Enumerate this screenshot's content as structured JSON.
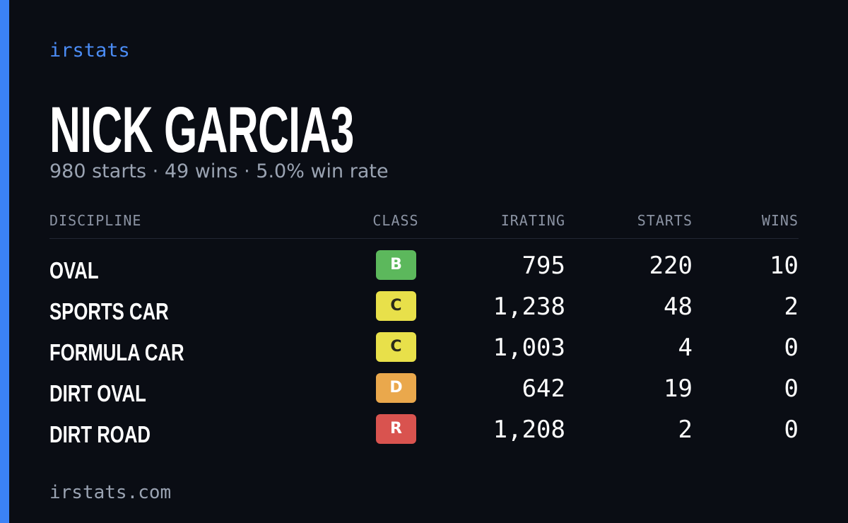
{
  "brand": "irstats",
  "title": "NICK GARCIA3",
  "subtitle": "980 starts · 49 wins · 5.0% win rate",
  "table": {
    "headers": [
      "DISCIPLINE",
      "CLASS",
      "IRATING",
      "STARTS",
      "WINS"
    ],
    "rows": [
      {
        "discipline": "OVAL",
        "class": "B",
        "class_color": "#5cb85c",
        "class_text_color": "#ffffff",
        "irating": "795",
        "starts": "220",
        "wins": "10"
      },
      {
        "discipline": "SPORTS CAR",
        "class": "C",
        "class_color": "#e8e04a",
        "class_text_color": "#2a2a1a",
        "irating": "1,238",
        "starts": "48",
        "wins": "2"
      },
      {
        "discipline": "FORMULA CAR",
        "class": "C",
        "class_color": "#e8e04a",
        "class_text_color": "#2a2a1a",
        "irating": "1,003",
        "starts": "4",
        "wins": "0"
      },
      {
        "discipline": "DIRT OVAL",
        "class": "D",
        "class_color": "#eaa84c",
        "class_text_color": "#ffffff",
        "irating": "642",
        "starts": "19",
        "wins": "0"
      },
      {
        "discipline": "DIRT ROAD",
        "class": "R",
        "class_color": "#d9534f",
        "class_text_color": "#ffffff",
        "irating": "1,208",
        "starts": "2",
        "wins": "0"
      }
    ]
  },
  "footer": "irstats.com"
}
